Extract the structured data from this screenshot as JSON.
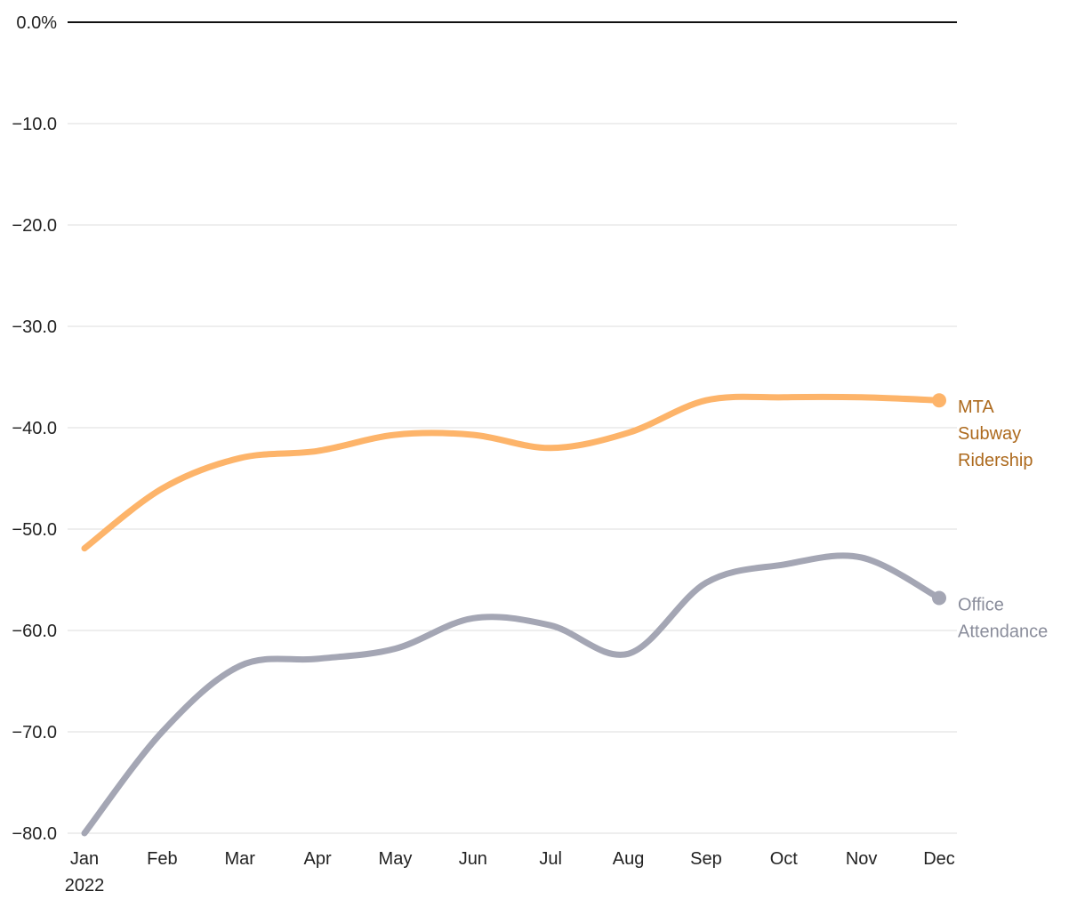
{
  "chart_data": {
    "type": "line",
    "title": "",
    "xlabel": "",
    "ylabel": "",
    "categories": [
      "Jan",
      "Feb",
      "Mar",
      "Apr",
      "May",
      "Jun",
      "Jul",
      "Aug",
      "Sep",
      "Oct",
      "Nov",
      "Dec"
    ],
    "year_label": "2022",
    "ylim": [
      -80,
      0
    ],
    "y_ticks": [
      0,
      -10,
      -20,
      -30,
      -40,
      -50,
      -60,
      -70,
      -80
    ],
    "y_tick_labels": [
      "0.0%",
      "−10.0",
      "−20.0",
      "−30.0",
      "−40.0",
      "−50.0",
      "−60.0",
      "−70.0",
      "−80.0"
    ],
    "grid": true,
    "series": [
      {
        "name": "MTA Subway Ridership",
        "label_lines": [
          "MTA",
          "Subway",
          "Ridership"
        ],
        "color": "#fdb46a",
        "label_color": "#ad6a1e",
        "values": [
          -51.9,
          -46.0,
          -43.0,
          -42.3,
          -40.7,
          -40.7,
          -42.0,
          -40.5,
          -37.3,
          -37.0,
          -37.0,
          -37.3
        ]
      },
      {
        "name": "Office Attendance",
        "label_lines": [
          "Office",
          "Attendance"
        ],
        "color": "#a4a6b4",
        "label_color": "#8a8d9b",
        "values": [
          -80.0,
          -70.0,
          -63.5,
          -62.8,
          -61.8,
          -58.8,
          -59.5,
          -62.3,
          -55.3,
          -53.5,
          -52.8,
          -56.8
        ]
      }
    ]
  }
}
